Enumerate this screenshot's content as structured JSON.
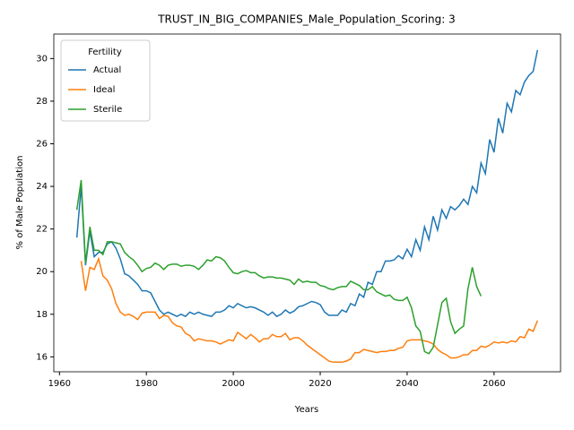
{
  "chart_data": {
    "type": "line",
    "title": "TRUST_IN_BIG_COMPANIES_Male_Population_Scoring: 3",
    "x_label": "Years",
    "y_label": "% of Male Population",
    "legend_title": "Fertility",
    "legend": "upper left",
    "grid": false,
    "xlim": [
      1958.7,
      2075.3
    ],
    "ylim": [
      15.3,
      31.15
    ],
    "xticks": [
      1960,
      1980,
      2000,
      2020,
      2040,
      2060
    ],
    "yticks": [
      16,
      18,
      20,
      22,
      24,
      26,
      28,
      30
    ],
    "x": [
      1964,
      1965,
      1966,
      1967,
      1968,
      1969,
      1970,
      1971,
      1972,
      1973,
      1974,
      1975,
      1976,
      1977,
      1978,
      1979,
      1980,
      1981,
      1982,
      1983,
      1984,
      1985,
      1986,
      1987,
      1988,
      1989,
      1990,
      1991,
      1992,
      1993,
      1994,
      1995,
      1996,
      1997,
      1998,
      1999,
      2000,
      2001,
      2002,
      2003,
      2004,
      2005,
      2006,
      2007,
      2008,
      2009,
      2010,
      2011,
      2012,
      2013,
      2014,
      2015,
      2016,
      2017,
      2018,
      2019,
      2020,
      2021,
      2022,
      2023,
      2024,
      2025,
      2026,
      2027,
      2028,
      2029,
      2030,
      2031,
      2032,
      2033,
      2034,
      2035,
      2036,
      2037,
      2038,
      2039,
      2040,
      2041,
      2042,
      2043,
      2044,
      2045,
      2046,
      2047,
      2048,
      2049,
      2050,
      2051,
      2052,
      2053,
      2054,
      2055,
      2056,
      2057,
      2058,
      2059,
      2060,
      2061,
      2062,
      2063,
      2064,
      2065,
      2066,
      2067,
      2068,
      2069,
      2070
    ],
    "series": [
      {
        "name": "Actual",
        "color": "#1f77b4",
        "values": [
          21.6,
          24.0,
          20.3,
          21.9,
          20.7,
          20.9,
          20.9,
          21.3,
          21.4,
          21.1,
          20.6,
          19.9,
          19.8,
          19.6,
          19.4,
          19.1,
          19.1,
          19.0,
          18.6,
          18.2,
          18.0,
          18.1,
          18.0,
          17.9,
          18.0,
          17.9,
          18.1,
          18.0,
          18.1,
          18.0,
          17.95,
          17.9,
          18.1,
          18.1,
          18.2,
          18.4,
          18.3,
          18.5,
          18.4,
          18.3,
          18.35,
          18.3,
          18.2,
          18.1,
          17.95,
          18.1,
          17.9,
          18.0,
          18.2,
          18.05,
          18.15,
          18.35,
          18.4,
          18.5,
          18.6,
          18.55,
          18.45,
          18.1,
          17.95,
          17.95,
          17.95,
          18.2,
          18.1,
          18.5,
          18.4,
          18.95,
          18.8,
          19.5,
          19.4,
          20.0,
          20.0,
          20.5,
          20.5,
          20.55,
          20.75,
          20.6,
          21.05,
          20.7,
          21.5,
          21.0,
          22.1,
          21.5,
          22.6,
          21.95,
          22.9,
          22.5,
          23.05,
          22.9,
          23.1,
          23.4,
          23.15,
          24.0,
          23.7,
          25.1,
          24.6,
          26.2,
          25.6,
          27.2,
          26.5,
          27.9,
          27.5,
          28.5,
          28.3,
          28.9,
          29.2,
          29.4,
          30.4
        ]
      },
      {
        "name": "Ideal",
        "color": "#ff7f0e",
        "values": [
          null,
          20.5,
          19.1,
          20.2,
          20.1,
          20.6,
          19.8,
          19.6,
          19.2,
          18.5,
          18.1,
          17.95,
          18.0,
          17.9,
          17.75,
          18.05,
          18.1,
          18.1,
          18.1,
          17.8,
          17.95,
          17.9,
          17.6,
          17.45,
          17.4,
          17.1,
          17.0,
          16.75,
          16.85,
          16.8,
          16.75,
          16.75,
          16.7,
          16.6,
          16.7,
          16.8,
          16.75,
          17.15,
          17.0,
          16.85,
          17.05,
          16.9,
          16.7,
          16.85,
          16.85,
          17.05,
          16.95,
          16.95,
          17.1,
          16.8,
          16.9,
          16.9,
          16.75,
          16.55,
          16.4,
          16.25,
          16.1,
          15.95,
          15.8,
          15.75,
          15.75,
          15.75,
          15.8,
          15.9,
          16.2,
          16.2,
          16.35,
          16.3,
          16.25,
          16.2,
          16.25,
          16.25,
          16.3,
          16.3,
          16.4,
          16.45,
          16.75,
          16.8,
          16.8,
          16.8,
          16.75,
          16.7,
          16.6,
          16.35,
          16.2,
          16.1,
          15.95,
          15.95,
          16.0,
          16.1,
          16.1,
          16.3,
          16.3,
          16.5,
          16.45,
          16.55,
          16.7,
          16.65,
          16.7,
          16.65,
          16.75,
          16.7,
          16.95,
          16.9,
          17.3,
          17.2,
          17.7
        ]
      },
      {
        "name": "Sterile",
        "color": "#2ca02c",
        "values": [
          22.9,
          24.3,
          20.4,
          22.1,
          21.0,
          21.0,
          20.8,
          21.4,
          21.4,
          21.35,
          21.3,
          20.9,
          20.7,
          20.55,
          20.3,
          20.0,
          20.15,
          20.2,
          20.4,
          20.3,
          20.1,
          20.3,
          20.35,
          20.35,
          20.25,
          20.3,
          20.3,
          20.25,
          20.1,
          20.3,
          20.55,
          20.5,
          20.7,
          20.65,
          20.5,
          20.2,
          19.95,
          19.9,
          20.0,
          20.05,
          19.95,
          19.95,
          19.8,
          19.7,
          19.75,
          19.75,
          19.7,
          19.7,
          19.65,
          19.6,
          19.4,
          19.65,
          19.5,
          19.55,
          19.5,
          19.5,
          19.35,
          19.3,
          19.2,
          19.15,
          19.25,
          19.3,
          19.3,
          19.55,
          19.45,
          19.35,
          19.15,
          19.15,
          19.3,
          19.05,
          18.95,
          18.85,
          18.9,
          18.7,
          18.65,
          18.65,
          18.8,
          18.3,
          17.45,
          17.2,
          16.25,
          16.15,
          16.45,
          17.5,
          18.55,
          18.75,
          17.65,
          17.1,
          17.3,
          17.45,
          19.2,
          20.2,
          19.3,
          18.85,
          null,
          null,
          null,
          null,
          null,
          null,
          null,
          null,
          null,
          null,
          null,
          null,
          null
        ]
      }
    ]
  }
}
